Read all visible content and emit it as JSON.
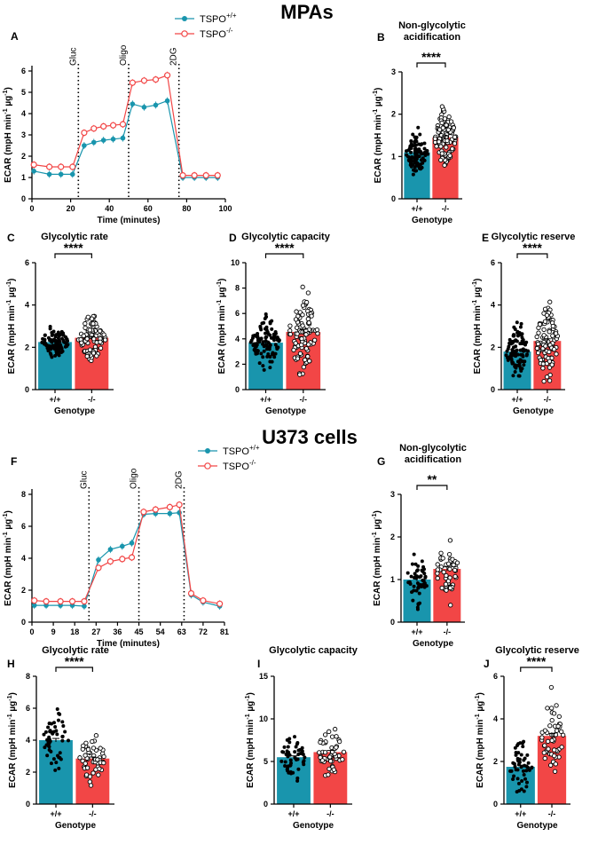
{
  "colors": {
    "wt": "#1995ad",
    "ko": "#f24646"
  },
  "sections": [
    {
      "title": "MPAs",
      "legend": {
        "wt": "TSPO+/+",
        "wt_base": "TSPO",
        "wt_sup": "+/+",
        "ko_base": "TSPO",
        "ko_sup": "-/-"
      }
    },
    {
      "title": "U373 cells",
      "legend": {
        "wt_base": "TSPO",
        "wt_sup": "+/+",
        "ko_base": "TSPO",
        "ko_sup": "-/-"
      }
    }
  ],
  "chart_data": [
    {
      "panel": "A",
      "type": "line",
      "title": "",
      "xlabel": "Time (minutes)",
      "ylabel": "ECAR (mpH min-1 µg-1)",
      "xlim": [
        0,
        100
      ],
      "xticks": [
        0,
        20,
        40,
        60,
        80,
        100
      ],
      "ylim": [
        0,
        6
      ],
      "yticks": [
        0,
        1,
        2,
        3,
        4,
        5,
        6
      ],
      "events": [
        {
          "label": "Gluc",
          "x": 24
        },
        {
          "label": "Oligo",
          "x": 50
        },
        {
          "label": "2DG",
          "x": 76
        }
      ],
      "series": [
        {
          "name": "TSPO+/+",
          "x": [
            1,
            9,
            15,
            21,
            27,
            32,
            37,
            42,
            47,
            52,
            58,
            64,
            70,
            78,
            84,
            90,
            96
          ],
          "values": [
            1.3,
            1.15,
            1.15,
            1.15,
            2.5,
            2.65,
            2.75,
            2.8,
            2.85,
            4.45,
            4.3,
            4.4,
            4.6,
            1.0,
            1.0,
            1.0,
            1.0
          ]
        },
        {
          "name": "TSPO-/-",
          "x": [
            1,
            9,
            15,
            21,
            27,
            32,
            37,
            42,
            47,
            52,
            58,
            64,
            70,
            78,
            84,
            90,
            96
          ],
          "values": [
            1.6,
            1.5,
            1.5,
            1.5,
            3.1,
            3.3,
            3.4,
            3.45,
            3.5,
            5.45,
            5.55,
            5.6,
            5.8,
            1.1,
            1.1,
            1.1,
            1.1
          ]
        }
      ]
    },
    {
      "panel": "B",
      "type": "bar",
      "title_lines": [
        "Non-glycolytic",
        "acidification"
      ],
      "xlabel": "Genotype",
      "ylabel": "ECAR (mpH min-1 µg-1)",
      "categories": [
        "+/+",
        "-/-"
      ],
      "values": [
        1.1,
        1.45
      ],
      "ylim": [
        0,
        3
      ],
      "yticks": [
        0,
        1,
        2,
        3
      ],
      "sig": "****",
      "dot_spread": [
        0.25,
        0.33
      ],
      "n": 95
    },
    {
      "panel": "C",
      "type": "bar",
      "title_lines": [
        "Glycolytic rate"
      ],
      "xlabel": "Genotype",
      "ylabel": "ECAR (mpH min-1 µg-1)",
      "categories": [
        "+/+",
        "-/-"
      ],
      "values": [
        2.25,
        2.45
      ],
      "ylim": [
        0,
        6
      ],
      "yticks": [
        0,
        2,
        4,
        6
      ],
      "sig": "****",
      "dot_spread": [
        0.35,
        0.55
      ],
      "n": 95
    },
    {
      "panel": "D",
      "type": "bar",
      "title_lines": [
        "Glycolytic capacity"
      ],
      "xlabel": "Genotype",
      "ylabel": "ECAR (mpH min-1 µg-1)",
      "categories": [
        "+/+",
        "-/-"
      ],
      "values": [
        3.7,
        4.55
      ],
      "ylim": [
        0,
        10
      ],
      "yticks": [
        0,
        2,
        4,
        6,
        8,
        10
      ],
      "sig": "****",
      "dot_spread": [
        1.1,
        1.7
      ],
      "n": 95
    },
    {
      "panel": "E",
      "type": "bar",
      "title_lines": [
        "Glycolytic reserve"
      ],
      "xlabel": "Genotype",
      "ylabel": "ECAR (mpH min-1 µg-1)",
      "categories": [
        "+/+",
        "-/-"
      ],
      "values": [
        1.8,
        2.3
      ],
      "ylim": [
        0,
        6
      ],
      "yticks": [
        0,
        2,
        4,
        6
      ],
      "sig": "****",
      "dot_spread": [
        0.6,
        0.85
      ],
      "n": 95
    },
    {
      "panel": "F",
      "type": "line",
      "title": "",
      "xlabel": "Time (minutes)",
      "ylabel": "ECAR (mpH min-1 µg-1)",
      "xlim": [
        0,
        81
      ],
      "xticks": [
        0,
        9,
        18,
        27,
        36,
        45,
        54,
        63,
        72,
        81
      ],
      "ylim": [
        0,
        8
      ],
      "yticks": [
        0,
        2,
        4,
        6,
        8
      ],
      "events": [
        {
          "label": "Gluc",
          "x": 24
        },
        {
          "label": "Oligo",
          "x": 45
        },
        {
          "label": "2DG",
          "x": 64
        }
      ],
      "series": [
        {
          "name": "TSPO+/+",
          "x": [
            1,
            6,
            12,
            17,
            22,
            28,
            33,
            38,
            42,
            47,
            52,
            58,
            62,
            67,
            72,
            79
          ],
          "values": [
            1.05,
            1.05,
            1.05,
            1.05,
            1.0,
            3.9,
            4.55,
            4.75,
            4.95,
            6.75,
            6.8,
            6.8,
            6.85,
            1.7,
            1.25,
            1.0
          ]
        },
        {
          "name": "TSPO-/-",
          "x": [
            1,
            6,
            12,
            17,
            22,
            28,
            33,
            38,
            42,
            47,
            52,
            58,
            62,
            67,
            72,
            79
          ],
          "values": [
            1.35,
            1.3,
            1.3,
            1.3,
            1.3,
            3.4,
            3.8,
            3.95,
            4.05,
            6.9,
            7.05,
            7.2,
            7.35,
            1.8,
            1.35,
            1.15
          ]
        }
      ]
    },
    {
      "panel": "G",
      "type": "bar",
      "title_lines": [
        "Non-glycolytic",
        "acidification"
      ],
      "xlabel": "Genotype",
      "ylabel": "ECAR (mpH min-1 µg-1)",
      "categories": [
        "+/+",
        "-/-"
      ],
      "values": [
        1.0,
        1.25
      ],
      "ylim": [
        0,
        3
      ],
      "yticks": [
        0,
        1,
        2,
        3
      ],
      "sig": "**",
      "dot_spread": [
        0.3,
        0.4
      ],
      "n": 50
    },
    {
      "panel": "H",
      "type": "bar",
      "title_lines": [
        "Glycolytic rate"
      ],
      "xlabel": "Genotype",
      "ylabel": "ECAR (mpH min-1 µg-1)",
      "categories": [
        "+/+",
        "-/-"
      ],
      "values": [
        4.0,
        2.85
      ],
      "ylim": [
        0,
        8
      ],
      "yticks": [
        0,
        2,
        4,
        6,
        8
      ],
      "sig": "****",
      "dot_spread": [
        0.9,
        0.8
      ],
      "n": 50
    },
    {
      "panel": "I",
      "type": "bar",
      "title_lines": [
        "Glycolytic capacity"
      ],
      "xlabel": "Genotype",
      "ylabel": "ECAR (mpH min-1 µg-1)",
      "categories": [
        "+/+",
        "-/-"
      ],
      "values": [
        5.5,
        6.1
      ],
      "ylim": [
        0,
        15
      ],
      "yticks": [
        0,
        5,
        10,
        15
      ],
      "sig": "",
      "dot_spread": [
        1.3,
        1.6
      ],
      "n": 50
    },
    {
      "panel": "J",
      "type": "bar",
      "title_lines": [
        "Glycolytic reserve"
      ],
      "xlabel": "Genotype",
      "ylabel": "ECAR (mpH min-1 µg-1)",
      "categories": [
        "+/+",
        "-/-"
      ],
      "values": [
        1.75,
        3.2
      ],
      "ylim": [
        0,
        6
      ],
      "yticks": [
        0,
        2,
        4,
        6
      ],
      "sig": "****",
      "dot_spread": [
        0.65,
        0.9
      ],
      "n": 50
    }
  ]
}
